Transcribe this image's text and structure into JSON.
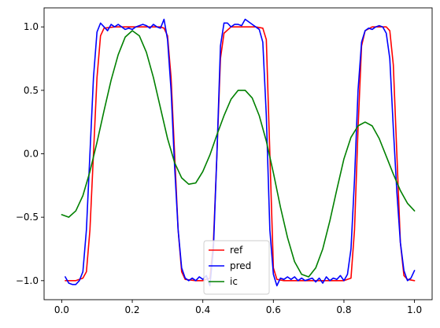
{
  "chart_data": {
    "type": "line",
    "title": "",
    "xlabel": "",
    "ylabel": "",
    "xlim": [
      -0.05,
      1.05
    ],
    "ylim": [
      -1.15,
      1.15
    ],
    "x_ticks": [
      0.0,
      0.2,
      0.4,
      0.6,
      0.8,
      1.0
    ],
    "x_tick_labels": [
      "0.0",
      "0.2",
      "0.4",
      "0.6",
      "0.8",
      "1.0"
    ],
    "y_ticks": [
      -1.0,
      -0.5,
      0.0,
      0.5,
      1.0
    ],
    "y_tick_labels": [
      "−1.0",
      "−0.5",
      "0.0",
      "0.5",
      "1.0"
    ],
    "grid": false,
    "legend_position": "bottom-center",
    "series": [
      {
        "name": "ref",
        "color": "#ff0000",
        "points": [
          [
            0.01,
            -1.0
          ],
          [
            0.04,
            -1.0
          ],
          [
            0.06,
            -0.98
          ],
          [
            0.07,
            -0.93
          ],
          [
            0.08,
            -0.6
          ],
          [
            0.09,
            0.0
          ],
          [
            0.1,
            0.6
          ],
          [
            0.11,
            0.93
          ],
          [
            0.12,
            0.99
          ],
          [
            0.15,
            1.0
          ],
          [
            0.2,
            1.0
          ],
          [
            0.25,
            1.0
          ],
          [
            0.28,
            1.0
          ],
          [
            0.29,
            0.99
          ],
          [
            0.3,
            0.93
          ],
          [
            0.31,
            0.6
          ],
          [
            0.32,
            0.0
          ],
          [
            0.33,
            -0.6
          ],
          [
            0.34,
            -0.93
          ],
          [
            0.35,
            -0.99
          ],
          [
            0.38,
            -1.0
          ],
          [
            0.4,
            -1.0
          ],
          [
            0.42,
            -0.98
          ],
          [
            0.43,
            -0.7
          ],
          [
            0.44,
            0.0
          ],
          [
            0.45,
            0.75
          ],
          [
            0.46,
            0.95
          ],
          [
            0.48,
            1.0
          ],
          [
            0.55,
            1.0
          ],
          [
            0.57,
            0.99
          ],
          [
            0.58,
            0.9
          ],
          [
            0.59,
            0.0
          ],
          [
            0.6,
            -0.9
          ],
          [
            0.61,
            -0.99
          ],
          [
            0.63,
            -1.0
          ],
          [
            0.8,
            -1.0
          ],
          [
            0.82,
            -0.98
          ],
          [
            0.83,
            -0.6
          ],
          [
            0.84,
            0.2
          ],
          [
            0.85,
            0.85
          ],
          [
            0.86,
            0.97
          ],
          [
            0.88,
            1.0
          ],
          [
            0.92,
            1.0
          ],
          [
            0.93,
            0.97
          ],
          [
            0.94,
            0.7
          ],
          [
            0.95,
            0.0
          ],
          [
            0.96,
            -0.7
          ],
          [
            0.97,
            -0.96
          ],
          [
            0.98,
            -0.99
          ],
          [
            1.0,
            -1.0
          ]
        ]
      },
      {
        "name": "pred",
        "color": "#0000ff",
        "points": [
          [
            0.01,
            -0.97
          ],
          [
            0.02,
            -1.02
          ],
          [
            0.03,
            -1.03
          ],
          [
            0.04,
            -1.03
          ],
          [
            0.05,
            -1.0
          ],
          [
            0.06,
            -0.93
          ],
          [
            0.07,
            -0.6
          ],
          [
            0.08,
            0.0
          ],
          [
            0.09,
            0.6
          ],
          [
            0.1,
            0.96
          ],
          [
            0.11,
            1.03
          ],
          [
            0.12,
            1.0
          ],
          [
            0.13,
            0.97
          ],
          [
            0.14,
            1.02
          ],
          [
            0.15,
            1.0
          ],
          [
            0.16,
            1.02
          ],
          [
            0.17,
            1.0
          ],
          [
            0.18,
            0.98
          ],
          [
            0.19,
            0.99
          ],
          [
            0.2,
            0.98
          ],
          [
            0.21,
            1.0
          ],
          [
            0.22,
            1.01
          ],
          [
            0.23,
            1.02
          ],
          [
            0.24,
            1.01
          ],
          [
            0.25,
            0.99
          ],
          [
            0.26,
            1.02
          ],
          [
            0.27,
            1.0
          ],
          [
            0.28,
            0.99
          ],
          [
            0.29,
            1.06
          ],
          [
            0.3,
            0.9
          ],
          [
            0.31,
            0.5
          ],
          [
            0.32,
            -0.1
          ],
          [
            0.33,
            -0.6
          ],
          [
            0.34,
            -0.9
          ],
          [
            0.35,
            -0.98
          ],
          [
            0.36,
            -1.0
          ],
          [
            0.37,
            -0.98
          ],
          [
            0.38,
            -1.0
          ],
          [
            0.39,
            -0.97
          ],
          [
            0.4,
            -0.99
          ],
          [
            0.41,
            -0.96
          ],
          [
            0.42,
            -1.04
          ],
          [
            0.43,
            -0.75
          ],
          [
            0.44,
            0.0
          ],
          [
            0.45,
            0.85
          ],
          [
            0.46,
            1.03
          ],
          [
            0.47,
            1.03
          ],
          [
            0.48,
            1.0
          ],
          [
            0.49,
            1.02
          ],
          [
            0.5,
            1.02
          ],
          [
            0.51,
            1.01
          ],
          [
            0.52,
            1.06
          ],
          [
            0.53,
            1.04
          ],
          [
            0.54,
            1.02
          ],
          [
            0.55,
            1.0
          ],
          [
            0.56,
            0.98
          ],
          [
            0.57,
            0.88
          ],
          [
            0.58,
            0.3
          ],
          [
            0.59,
            -0.6
          ],
          [
            0.6,
            -0.95
          ],
          [
            0.61,
            -1.04
          ],
          [
            0.62,
            -0.98
          ],
          [
            0.63,
            -0.99
          ],
          [
            0.64,
            -0.97
          ],
          [
            0.65,
            -0.99
          ],
          [
            0.66,
            -0.97
          ],
          [
            0.67,
            -1.0
          ],
          [
            0.68,
            -0.98
          ],
          [
            0.69,
            -1.0
          ],
          [
            0.7,
            -0.99
          ],
          [
            0.71,
            -0.98
          ],
          [
            0.72,
            -1.01
          ],
          [
            0.73,
            -0.98
          ],
          [
            0.74,
            -1.02
          ],
          [
            0.75,
            -0.97
          ],
          [
            0.76,
            -1.0
          ],
          [
            0.77,
            -0.98
          ],
          [
            0.78,
            -0.99
          ],
          [
            0.79,
            -0.96
          ],
          [
            0.8,
            -1.0
          ],
          [
            0.81,
            -0.95
          ],
          [
            0.82,
            -0.75
          ],
          [
            0.83,
            -0.2
          ],
          [
            0.84,
            0.5
          ],
          [
            0.85,
            0.88
          ],
          [
            0.86,
            0.97
          ],
          [
            0.87,
            0.99
          ],
          [
            0.88,
            0.98
          ],
          [
            0.89,
            1.0
          ],
          [
            0.9,
            1.01
          ],
          [
            0.91,
            1.0
          ],
          [
            0.92,
            0.95
          ],
          [
            0.93,
            0.75
          ],
          [
            0.94,
            0.2
          ],
          [
            0.95,
            -0.3
          ],
          [
            0.96,
            -0.7
          ],
          [
            0.97,
            -0.92
          ],
          [
            0.98,
            -1.0
          ],
          [
            0.99,
            -0.98
          ],
          [
            1.0,
            -0.92
          ]
        ]
      },
      {
        "name": "ic",
        "color": "#008000",
        "points": [
          [
            0.0,
            -0.48
          ],
          [
            0.02,
            -0.5
          ],
          [
            0.04,
            -0.45
          ],
          [
            0.06,
            -0.33
          ],
          [
            0.08,
            -0.14
          ],
          [
            0.1,
            0.09
          ],
          [
            0.12,
            0.34
          ],
          [
            0.14,
            0.58
          ],
          [
            0.16,
            0.78
          ],
          [
            0.18,
            0.92
          ],
          [
            0.2,
            0.97
          ],
          [
            0.22,
            0.93
          ],
          [
            0.24,
            0.8
          ],
          [
            0.26,
            0.6
          ],
          [
            0.28,
            0.36
          ],
          [
            0.3,
            0.12
          ],
          [
            0.32,
            -0.07
          ],
          [
            0.34,
            -0.19
          ],
          [
            0.36,
            -0.24
          ],
          [
            0.38,
            -0.23
          ],
          [
            0.4,
            -0.14
          ],
          [
            0.42,
            -0.01
          ],
          [
            0.44,
            0.15
          ],
          [
            0.46,
            0.3
          ],
          [
            0.48,
            0.43
          ],
          [
            0.5,
            0.5
          ],
          [
            0.52,
            0.5
          ],
          [
            0.54,
            0.44
          ],
          [
            0.56,
            0.3
          ],
          [
            0.58,
            0.1
          ],
          [
            0.6,
            -0.15
          ],
          [
            0.62,
            -0.42
          ],
          [
            0.64,
            -0.66
          ],
          [
            0.66,
            -0.85
          ],
          [
            0.68,
            -0.95
          ],
          [
            0.7,
            -0.97
          ],
          [
            0.72,
            -0.9
          ],
          [
            0.74,
            -0.75
          ],
          [
            0.76,
            -0.53
          ],
          [
            0.78,
            -0.28
          ],
          [
            0.8,
            -0.04
          ],
          [
            0.82,
            0.13
          ],
          [
            0.84,
            0.22
          ],
          [
            0.86,
            0.25
          ],
          [
            0.88,
            0.22
          ],
          [
            0.9,
            0.12
          ],
          [
            0.92,
            -0.02
          ],
          [
            0.94,
            -0.16
          ],
          [
            0.96,
            -0.29
          ],
          [
            0.98,
            -0.39
          ],
          [
            1.0,
            -0.45
          ]
        ]
      }
    ]
  }
}
